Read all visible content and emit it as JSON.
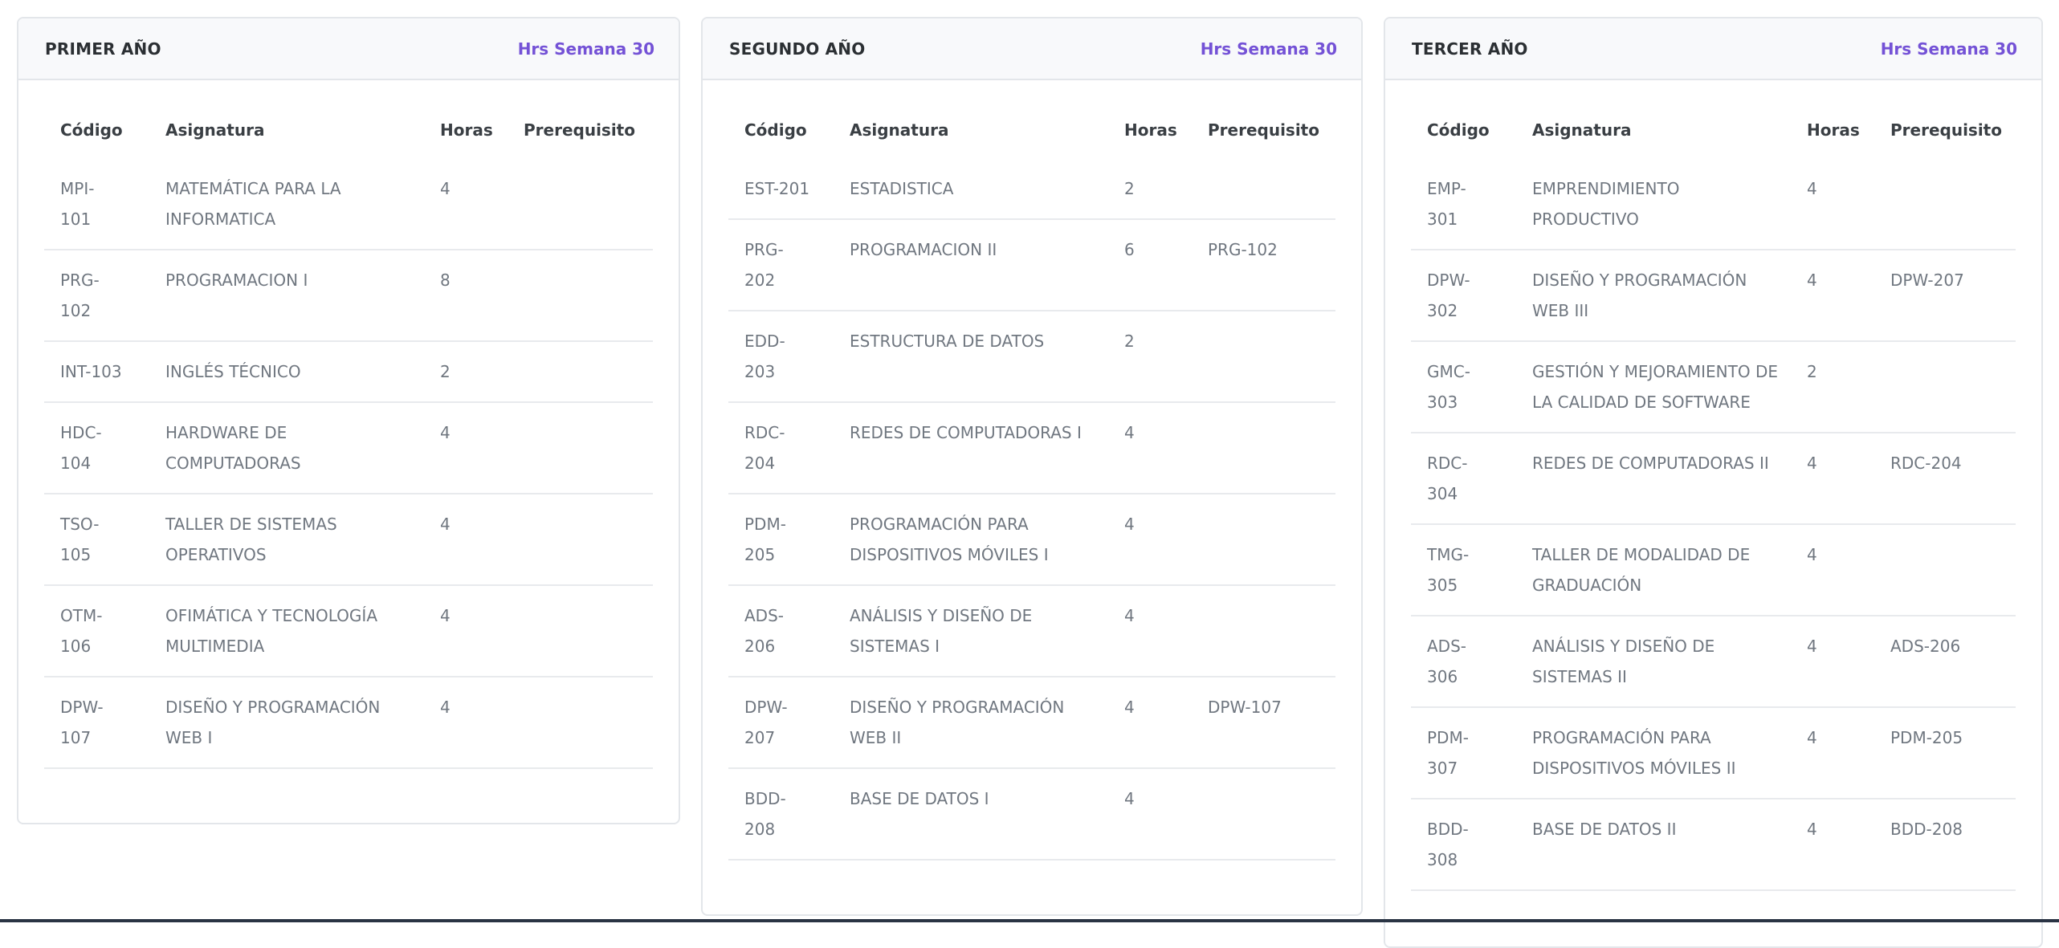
{
  "accent_color": "#7452d6",
  "columns": {
    "code": "Código",
    "subject": "Asignatura",
    "hours": "Horas",
    "prereq": "Prerequisito"
  },
  "years": [
    {
      "title": "PRIMER AÑO",
      "hours_label": "Hrs Semana 30",
      "rows": [
        {
          "code": "MPI-101",
          "subject": "MATEMÁTICA PARA LA INFORMATICA",
          "hours": "4",
          "prereq": ""
        },
        {
          "code": "PRG-102",
          "subject": "PROGRAMACION I",
          "hours": "8",
          "prereq": ""
        },
        {
          "code": "INT-103",
          "subject": "INGLÉS TÉCNICO",
          "hours": "2",
          "prereq": ""
        },
        {
          "code": "HDC-104",
          "subject": "HARDWARE DE COMPUTADORAS",
          "hours": "4",
          "prereq": ""
        },
        {
          "code": "TSO-105",
          "subject": "TALLER DE SISTEMAS OPERATIVOS",
          "hours": "4",
          "prereq": ""
        },
        {
          "code": "OTM-106",
          "subject": "OFIMÁTICA Y TECNOLOGÍA MULTIMEDIA",
          "hours": "4",
          "prereq": ""
        },
        {
          "code": "DPW-107",
          "subject": "DISEÑO Y PROGRAMACIÓN WEB I",
          "hours": "4",
          "prereq": ""
        }
      ]
    },
    {
      "title": "SEGUNDO AÑO",
      "hours_label": "Hrs Semana 30",
      "rows": [
        {
          "code": "EST-201",
          "subject": "ESTADISTICA",
          "hours": "2",
          "prereq": ""
        },
        {
          "code": "PRG-202",
          "subject": "PROGRAMACION II",
          "hours": "6",
          "prereq": "PRG-102"
        },
        {
          "code": "EDD-203",
          "subject": "ESTRUCTURA DE DATOS",
          "hours": "2",
          "prereq": ""
        },
        {
          "code": "RDC-204",
          "subject": "REDES DE COMPUTADORAS I",
          "hours": "4",
          "prereq": ""
        },
        {
          "code": "PDM-205",
          "subject": "PROGRAMACIÓN PARA DISPOSITIVOS MÓVILES I",
          "hours": "4",
          "prereq": ""
        },
        {
          "code": "ADS-206",
          "subject": "ANÁLISIS Y DISEÑO DE SISTEMAS I",
          "hours": "4",
          "prereq": ""
        },
        {
          "code": "DPW-207",
          "subject": "DISEÑO Y PROGRAMACIÓN WEB II",
          "hours": "4",
          "prereq": "DPW-107"
        },
        {
          "code": "BDD-208",
          "subject": "BASE DE DATOS I",
          "hours": "4",
          "prereq": ""
        }
      ]
    },
    {
      "title": "TERCER AÑO",
      "hours_label": "Hrs Semana 30",
      "rows": [
        {
          "code": "EMP-301",
          "subject": "EMPRENDIMIENTO PRODUCTIVO",
          "hours": "4",
          "prereq": ""
        },
        {
          "code": "DPW-302",
          "subject": "DISEÑO Y PROGRAMACIÓN WEB III",
          "hours": "4",
          "prereq": "DPW-207"
        },
        {
          "code": "GMC-303",
          "subject": "GESTIÓN Y MEJORAMIENTO DE LA CALIDAD DE SOFTWARE",
          "hours": "2",
          "prereq": ""
        },
        {
          "code": "RDC-304",
          "subject": "REDES DE COMPUTADORAS II",
          "hours": "4",
          "prereq": "RDC-204"
        },
        {
          "code": "TMG-305",
          "subject": "TALLER DE MODALIDAD DE GRADUACIÓN",
          "hours": "4",
          "prereq": ""
        },
        {
          "code": "ADS-306",
          "subject": "ANÁLISIS Y DISEÑO DE SISTEMAS II",
          "hours": "4",
          "prereq": "ADS-206"
        },
        {
          "code": "PDM-307",
          "subject": "PROGRAMACIÓN PARA DISPOSITIVOS MÓVILES II",
          "hours": "4",
          "prereq": "PDM-205"
        },
        {
          "code": "BDD-308",
          "subject": "BASE DE DATOS II",
          "hours": "4",
          "prereq": "BDD-208"
        }
      ]
    }
  ]
}
